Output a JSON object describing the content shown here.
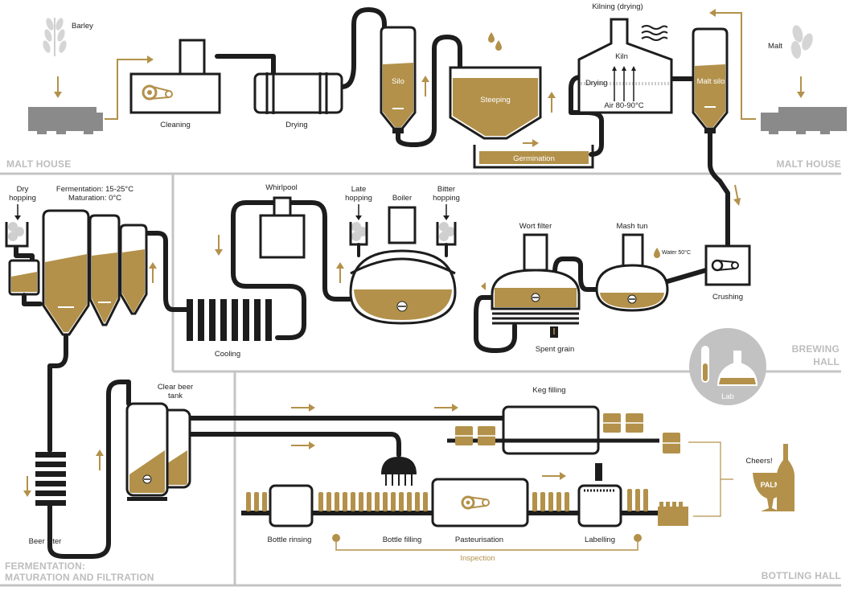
{
  "colors": {
    "gold": "#b3914a",
    "dark": "#1d1d1d",
    "grey": "#bdbdbd",
    "truck": "#8a8a8a"
  },
  "sections": {
    "malt_house_left": "MALT HOUSE",
    "malt_house_right": "MALT HOUSE",
    "brewing_hall_1": "BREWING",
    "brewing_hall_2": "HALL",
    "fermentation_1": "FERMENTATION:",
    "fermentation_2": "MATURATION AND FILTRATION",
    "bottling_hall": "BOTTLING HALL"
  },
  "malt_house": {
    "barley": "Barley",
    "cleaning": "Cleaning",
    "drying": "Drying",
    "silo": "Silo",
    "steeping": "Steeping",
    "germination": "Germination",
    "kilning": "Kilning (drying)",
    "kiln": "Kiln",
    "kiln_drying": "Drying",
    "air": "Air 80-90°C",
    "malt_silo": "Malt silo",
    "malt": "Malt"
  },
  "brewing_hall": {
    "whirlpool": "Whirlpool",
    "late_hopping_1": "Late",
    "late_hopping_2": "hopping",
    "boiler": "Boiler",
    "bitter_hopping_1": "Bitter",
    "bitter_hopping_2": "hopping",
    "wort_filter": "Wort filter",
    "mash_tun": "Mash tun",
    "water": "Water 50°C",
    "crushing": "Crushing",
    "cooling": "Cooling",
    "spent_grain": "Spent grain",
    "lab": "Lab"
  },
  "fermentation": {
    "dry_hopping_1": "Dry",
    "dry_hopping_2": "hopping",
    "fermentation_temp": "Fermentation: 15-25°C",
    "maturation_temp": "Maturation: 0°C",
    "clear_beer_1": "Clear beer",
    "clear_beer_2": "tank",
    "beer_filter": "Beer filter"
  },
  "bottling": {
    "keg_filling": "Keg filling",
    "bottle_rinsing": "Bottle rinsing",
    "bottle_filling": "Bottle filling",
    "pasteurisation": "Pasteurisation",
    "labelling": "Labelling",
    "inspection": "Inspection",
    "cheers": "Cheers!",
    "brand": "PALM"
  }
}
